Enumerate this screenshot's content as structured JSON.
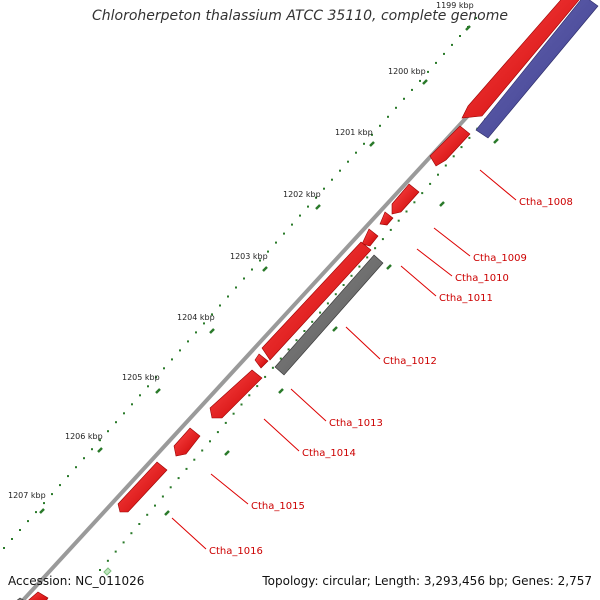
{
  "title": "Chloroherpeton thalassium ATCC 35110, complete genome",
  "accession": "Accession: NC_011026",
  "topology": "Topology: circular; Length: 3,293,456 bp; Genes: 2,757",
  "scale_labels": [
    "1199 kbp",
    "1200 kbp",
    "1201 kbp",
    "1202 kbp",
    "1203 kbp",
    "1204 kbp",
    "1205 kbp",
    "1206 kbp",
    "1207 kbp"
  ],
  "gene_labels": [
    "Ctha_1008",
    "Ctha_1009",
    "Ctha_1010",
    "Ctha_1011",
    "Ctha_1012",
    "Ctha_1013",
    "Ctha_1014",
    "Ctha_1015",
    "Ctha_1016"
  ],
  "colors": {
    "cds": "#ff0000",
    "cds_dark": "#cc0000",
    "rna": "#555599",
    "other": "#777777",
    "backbone": "#888888",
    "tick": "#2a7a2a",
    "label_text": "#cc0000",
    "leader": "#dd0000",
    "scale_text": "#222222"
  }
}
